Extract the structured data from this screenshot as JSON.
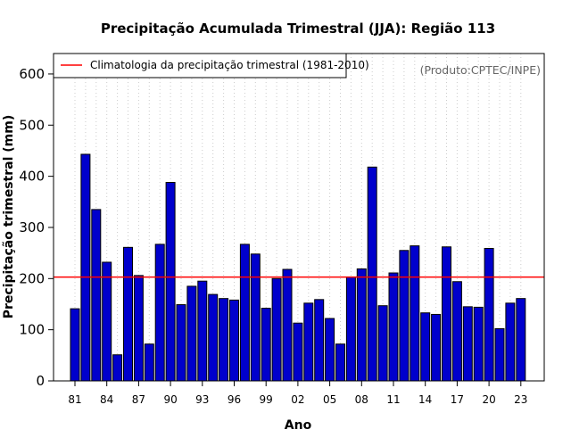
{
  "colors": {
    "bar_fill": "#0000cc",
    "bar_stroke": "#000000",
    "climatology_line": "#ff0000",
    "grid": "#cccccc",
    "credit": "#666666"
  },
  "chart_data": {
    "type": "bar",
    "title": "Precipitação Acumulada Trimestral (JJA): Região 113",
    "xlabel": "Ano",
    "ylabel": "Precipitação trimestral (mm)",
    "ylim": [
      0,
      640
    ],
    "yticks": [
      0,
      100,
      200,
      300,
      400,
      500,
      600
    ],
    "grid": "vertical dotted",
    "legend_position": "top-left",
    "categories": [
      "1981",
      "1982",
      "1983",
      "1984",
      "1985",
      "1986",
      "1987",
      "1988",
      "1989",
      "1990",
      "1991",
      "1992",
      "1993",
      "1994",
      "1995",
      "1996",
      "1997",
      "1998",
      "1999",
      "2000",
      "2001",
      "2002",
      "2003",
      "2004",
      "2005",
      "2006",
      "2007",
      "2008",
      "2009",
      "2010",
      "2011",
      "2012",
      "2013",
      "2014",
      "2015",
      "2016",
      "2017",
      "2018",
      "2019",
      "2020",
      "2021",
      "2022",
      "2023"
    ],
    "tick_labels": [
      "81",
      "84",
      "87",
      "90",
      "93",
      "96",
      "99",
      "02",
      "05",
      "08",
      "11",
      "14",
      "17",
      "20",
      "23"
    ],
    "series": [
      {
        "name": "Precipitação trimestral",
        "values": [
          141,
          443,
          335,
          232,
          51,
          261,
          206,
          72,
          267,
          388,
          149,
          185,
          195,
          169,
          161,
          158,
          267,
          248,
          142,
          200,
          218,
          113,
          152,
          159,
          122,
          72,
          203,
          219,
          418,
          147,
          211,
          255,
          264,
          133,
          130,
          262,
          194,
          145,
          144,
          259,
          102,
          152,
          161
        ]
      }
    ],
    "climatology": {
      "label": "Climatologia da precipitação trimestral (1981-2010)",
      "value": 203
    },
    "credit": "(Produto:CPTEC/INPE)"
  }
}
